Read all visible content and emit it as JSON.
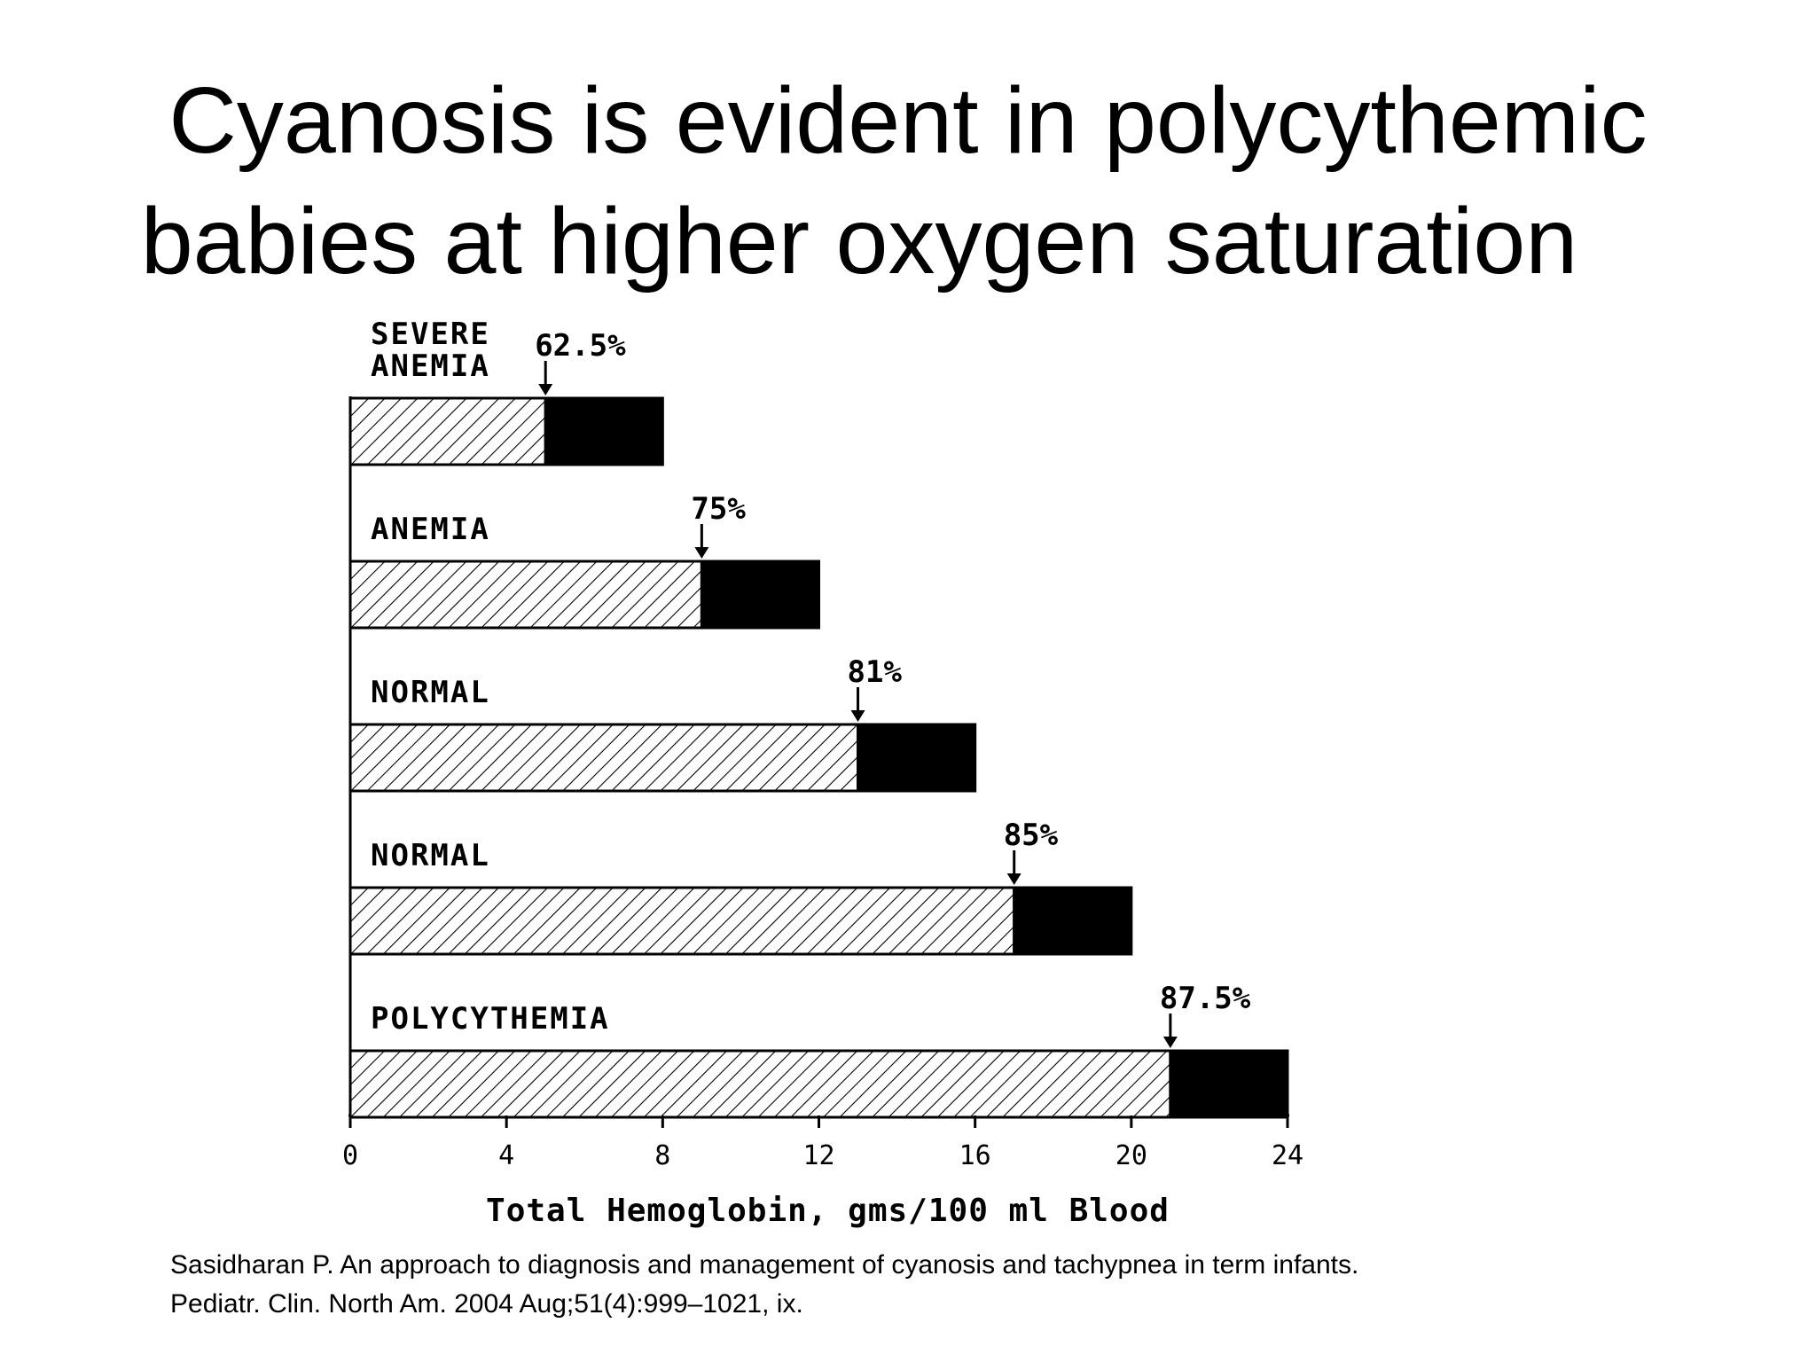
{
  "title": {
    "line1": "Cyanosis is evident in polycythemic",
    "line2": "babies at higher oxygen saturation"
  },
  "citation": {
    "line1": "Sasidharan P. An approach to diagnosis and management of cyanosis and tachypnea in term infants.",
    "line2": "Pediatr. Clin. North Am. 2004 Aug;51(4):999–1021, ix."
  },
  "chart_data": {
    "type": "bar",
    "orientation": "horizontal",
    "stacked": true,
    "categories": [
      [
        "SEVERE",
        "ANEMIA"
      ],
      [
        "ANEMIA"
      ],
      [
        "NORMAL"
      ],
      [
        "NORMAL"
      ],
      [
        "POLYCYTHEMIA"
      ]
    ],
    "series": [
      {
        "values": [
          5,
          9,
          13,
          17,
          21
        ],
        "pattern": "hatched",
        "color": "#ffffff"
      },
      {
        "values": [
          3,
          3,
          3,
          3,
          3
        ],
        "pattern": "solid",
        "color": "#000000"
      }
    ],
    "totals": [
      8,
      12,
      16,
      20,
      24
    ],
    "saturation_labels": [
      "62.5%",
      "75%",
      "81%",
      "85%",
      "87.5%"
    ],
    "arrow_at": [
      5,
      9,
      13,
      17,
      21
    ],
    "xlabel": "Total Hemoglobin, gms/100 ml Blood",
    "xlim": [
      0,
      24
    ],
    "xticks": [
      0,
      4,
      8,
      12,
      16,
      20,
      24
    ],
    "grid": false,
    "legend": "none"
  }
}
